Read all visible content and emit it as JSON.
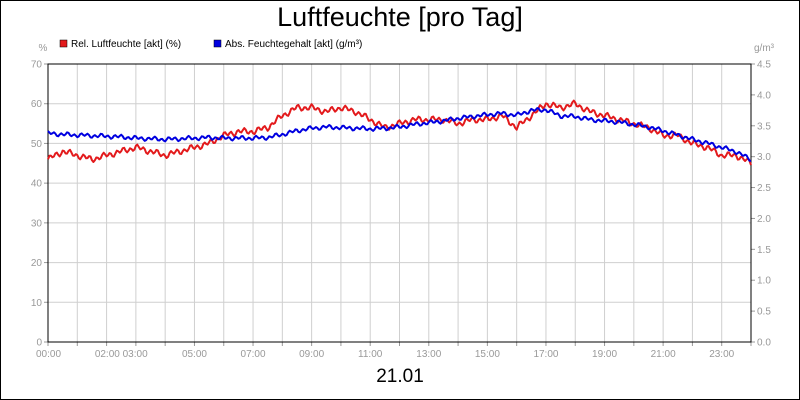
{
  "title": "Luftfeuchte [pro Tag]",
  "date_label": "21.01",
  "chart_data": {
    "type": "line",
    "title": "Luftfeuchte [pro Tag]",
    "y_left_unit": "%",
    "y_right_unit": "g/m³",
    "ylim_left": [
      0,
      70
    ],
    "ylim_right": [
      0,
      4.5
    ],
    "y_left_ticks": [
      "0",
      "10",
      "20",
      "30",
      "40",
      "50",
      "60",
      "70"
    ],
    "y_right_ticks": [
      "0.0",
      "0.5",
      "1.0",
      "1.5",
      "2.0",
      "2.5",
      "3.0",
      "3.5",
      "4.0",
      "4.5"
    ],
    "x_tick_labels": [
      "00:00",
      "02:00 03:00",
      "05:00",
      "07:00",
      "09:00",
      "11:00",
      "13:00",
      "15:00",
      "17:00",
      "19:00",
      "21:00",
      "23:00"
    ],
    "xlim_hours": [
      0,
      24
    ],
    "grid": true,
    "legend_placement": "top-left",
    "series": [
      {
        "name": "Rel. Luftfeuchte [akt] (%)",
        "color": "#e31a1c",
        "axis": "left",
        "x": [
          0,
          0.5,
          1,
          1.5,
          2,
          2.5,
          3,
          3.5,
          4,
          4.5,
          5,
          5.5,
          6,
          6.5,
          7,
          7.5,
          8,
          8.5,
          9,
          9.5,
          10,
          10.5,
          11,
          11.5,
          12,
          12.5,
          13,
          13.5,
          14,
          14.5,
          15,
          15.5,
          16,
          16.5,
          17,
          17.5,
          18,
          18.5,
          19,
          19.5,
          20,
          20.5,
          21,
          21.5,
          22,
          22.5,
          23,
          23.5,
          24
        ],
        "values": [
          46,
          48,
          47,
          46,
          47,
          48,
          49,
          48,
          47,
          48,
          49,
          50,
          52,
          53,
          53,
          54,
          57,
          59,
          59,
          58,
          59,
          58,
          56,
          54,
          55,
          56,
          56,
          56,
          55,
          56,
          56,
          57,
          54,
          57,
          60,
          59,
          60,
          58,
          57,
          56,
          55,
          54,
          52,
          52,
          50,
          49,
          47,
          47,
          45
        ]
      },
      {
        "name": "Abs. Feuchtegehalt [akt] (g/m³)",
        "color": "#0000e0",
        "axis": "right",
        "x": [
          0,
          0.5,
          1,
          1.5,
          2,
          2.5,
          3,
          3.5,
          4,
          4.5,
          5,
          5.5,
          6,
          6.5,
          7,
          7.5,
          8,
          8.5,
          9,
          9.5,
          10,
          10.5,
          11,
          11.5,
          12,
          12.5,
          13,
          13.5,
          14,
          14.5,
          15,
          15.5,
          16,
          16.5,
          17,
          17.5,
          18,
          18.5,
          19,
          19.5,
          20,
          20.5,
          21,
          21.5,
          22,
          22.5,
          23,
          23.5,
          24
        ],
        "values": [
          3.38,
          3.36,
          3.35,
          3.34,
          3.33,
          3.32,
          3.3,
          3.29,
          3.28,
          3.29,
          3.3,
          3.31,
          3.3,
          3.3,
          3.3,
          3.31,
          3.36,
          3.42,
          3.46,
          3.48,
          3.47,
          3.46,
          3.45,
          3.46,
          3.48,
          3.52,
          3.55,
          3.58,
          3.62,
          3.65,
          3.68,
          3.7,
          3.67,
          3.75,
          3.76,
          3.66,
          3.65,
          3.6,
          3.58,
          3.56,
          3.52,
          3.48,
          3.42,
          3.35,
          3.28,
          3.22,
          3.15,
          3.08,
          2.95
        ]
      }
    ]
  }
}
